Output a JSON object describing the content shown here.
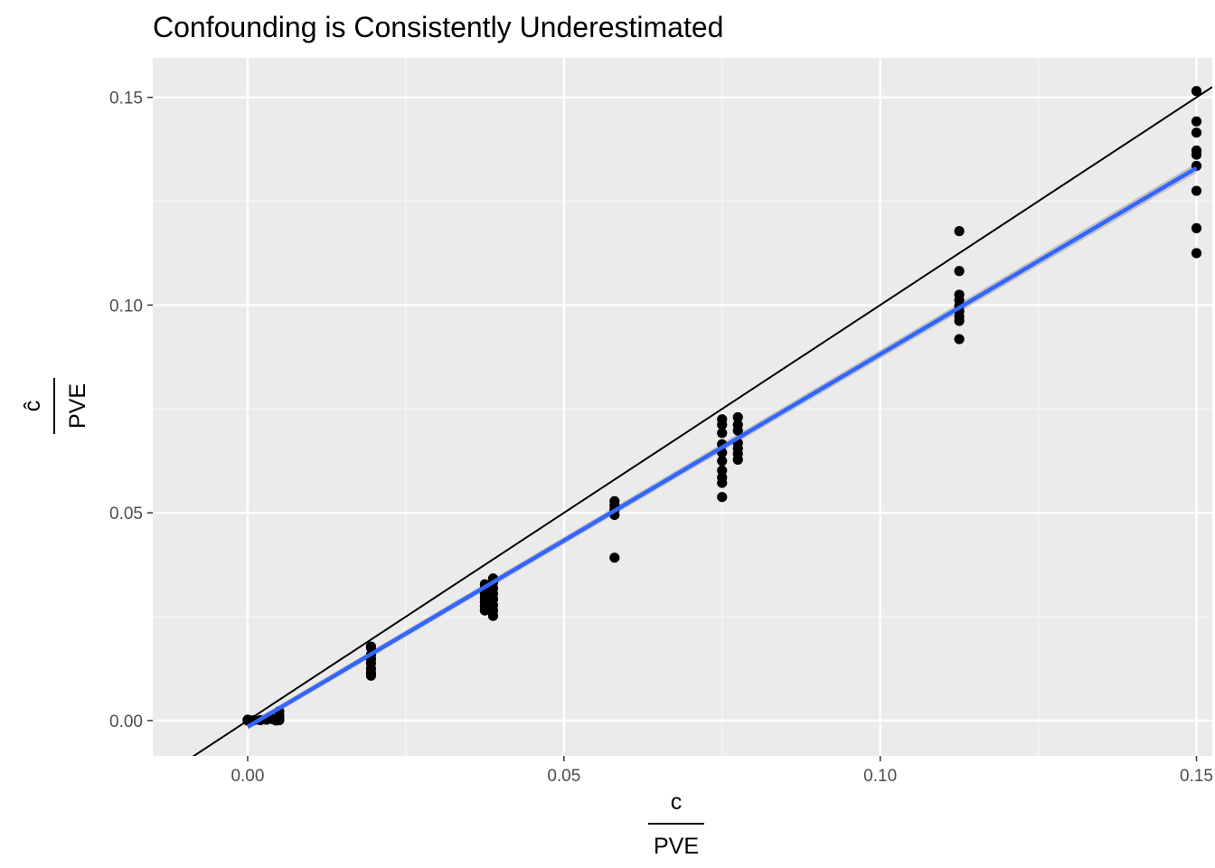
{
  "chart_data": {
    "type": "scatter",
    "title": "Confounding is Consistently Underestimated",
    "xlabel": {
      "numerator": "c",
      "denominator": "PVE"
    },
    "ylabel": {
      "numerator": "ĉ",
      "denominator": "PVE"
    },
    "xlim": [
      -0.015,
      0.1525
    ],
    "ylim": [
      -0.0085,
      0.1595
    ],
    "x_ticks": [
      0.0,
      0.05,
      0.1,
      0.15
    ],
    "x_tick_labels": [
      "0.00",
      "0.05",
      "0.10",
      "0.15"
    ],
    "y_ticks": [
      0.0,
      0.05,
      0.1,
      0.15
    ],
    "y_tick_labels": [
      "0.00",
      "0.05",
      "0.10",
      "0.15"
    ],
    "grid": true,
    "background_color": "#ebebeb",
    "reference_line": {
      "slope": 1,
      "intercept": 0,
      "color": "#000000"
    },
    "fit_line": {
      "x": [
        0.0,
        0.15
      ],
      "y": [
        -0.0015,
        0.133
      ],
      "color": "#3366ff",
      "se_band": 0.0012
    },
    "points": [
      {
        "x": 0.0,
        "y": 0.0
      },
      {
        "x": 0.0,
        "y": 0.0002
      },
      {
        "x": 0.0,
        "y": 0.0001
      },
      {
        "x": 0.0005,
        "y": 0.0
      },
      {
        "x": 0.001,
        "y": 0.0001
      },
      {
        "x": 0.002,
        "y": 0.0001
      },
      {
        "x": 0.003,
        "y": 0.0002
      },
      {
        "x": 0.0035,
        "y": 0.0008
      },
      {
        "x": 0.004,
        "y": 0.0003
      },
      {
        "x": 0.0045,
        "y": 0.0
      },
      {
        "x": 0.005,
        "y": 0.0005
      },
      {
        "x": 0.005,
        "y": 0.0012
      },
      {
        "x": 0.005,
        "y": 0.0022
      },
      {
        "x": 0.005,
        "y": 0.0001
      },
      {
        "x": 0.0195,
        "y": 0.0178
      },
      {
        "x": 0.0195,
        "y": 0.0175
      },
      {
        "x": 0.0195,
        "y": 0.0158
      },
      {
        "x": 0.0195,
        "y": 0.0148
      },
      {
        "x": 0.0195,
        "y": 0.0138
      },
      {
        "x": 0.0195,
        "y": 0.0125
      },
      {
        "x": 0.0195,
        "y": 0.0115
      },
      {
        "x": 0.0195,
        "y": 0.0108
      },
      {
        "x": 0.0375,
        "y": 0.0328
      },
      {
        "x": 0.0375,
        "y": 0.0318
      },
      {
        "x": 0.0375,
        "y": 0.0305
      },
      {
        "x": 0.0375,
        "y": 0.0295
      },
      {
        "x": 0.0375,
        "y": 0.0285
      },
      {
        "x": 0.0375,
        "y": 0.0275
      },
      {
        "x": 0.0375,
        "y": 0.0265
      },
      {
        "x": 0.0388,
        "y": 0.0342
      },
      {
        "x": 0.0388,
        "y": 0.0332
      },
      {
        "x": 0.0388,
        "y": 0.0318
      },
      {
        "x": 0.0388,
        "y": 0.0305
      },
      {
        "x": 0.0388,
        "y": 0.0292
      },
      {
        "x": 0.0388,
        "y": 0.0278
      },
      {
        "x": 0.0388,
        "y": 0.0265
      },
      {
        "x": 0.0388,
        "y": 0.0252
      },
      {
        "x": 0.058,
        "y": 0.0528
      },
      {
        "x": 0.058,
        "y": 0.0518
      },
      {
        "x": 0.058,
        "y": 0.0508
      },
      {
        "x": 0.058,
        "y": 0.0495
      },
      {
        "x": 0.058,
        "y": 0.0392
      },
      {
        "x": 0.075,
        "y": 0.0725
      },
      {
        "x": 0.075,
        "y": 0.0712
      },
      {
        "x": 0.075,
        "y": 0.0692
      },
      {
        "x": 0.075,
        "y": 0.0665
      },
      {
        "x": 0.075,
        "y": 0.0645
      },
      {
        "x": 0.075,
        "y": 0.0625
      },
      {
        "x": 0.075,
        "y": 0.0602
      },
      {
        "x": 0.075,
        "y": 0.0585
      },
      {
        "x": 0.075,
        "y": 0.0572
      },
      {
        "x": 0.075,
        "y": 0.0538
      },
      {
        "x": 0.0775,
        "y": 0.073
      },
      {
        "x": 0.0775,
        "y": 0.0712
      },
      {
        "x": 0.0775,
        "y": 0.0698
      },
      {
        "x": 0.0775,
        "y": 0.0668
      },
      {
        "x": 0.0775,
        "y": 0.0655
      },
      {
        "x": 0.0775,
        "y": 0.0642
      },
      {
        "x": 0.0775,
        "y": 0.0628
      },
      {
        "x": 0.1125,
        "y": 0.1178
      },
      {
        "x": 0.1125,
        "y": 0.1082
      },
      {
        "x": 0.1125,
        "y": 0.1025
      },
      {
        "x": 0.1125,
        "y": 0.1012
      },
      {
        "x": 0.1125,
        "y": 0.0998
      },
      {
        "x": 0.1125,
        "y": 0.0985
      },
      {
        "x": 0.1125,
        "y": 0.0972
      },
      {
        "x": 0.1125,
        "y": 0.0962
      },
      {
        "x": 0.1125,
        "y": 0.0918
      },
      {
        "x": 0.15,
        "y": 0.1515
      },
      {
        "x": 0.15,
        "y": 0.1442
      },
      {
        "x": 0.15,
        "y": 0.1415
      },
      {
        "x": 0.15,
        "y": 0.1372
      },
      {
        "x": 0.15,
        "y": 0.1362
      },
      {
        "x": 0.15,
        "y": 0.1335
      },
      {
        "x": 0.15,
        "y": 0.1275
      },
      {
        "x": 0.15,
        "y": 0.1185
      },
      {
        "x": 0.15,
        "y": 0.1125
      }
    ]
  }
}
